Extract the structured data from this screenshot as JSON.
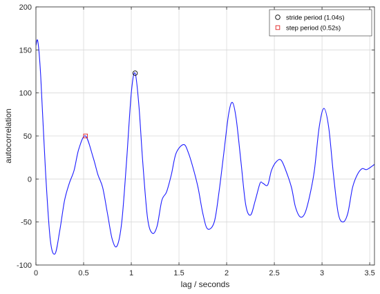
{
  "chart_data": {
    "type": "line",
    "xlabel": "lag / seconds",
    "ylabel": "autocorrelation",
    "xlim": [
      0,
      3.55
    ],
    "ylim": [
      -100,
      200
    ],
    "xticks": [
      0,
      0.5,
      1,
      1.5,
      2,
      2.5,
      3,
      3.5
    ],
    "xtick_labels": [
      "0",
      "0.5",
      "1",
      "1.5",
      "2",
      "2.5",
      "3",
      "3.5"
    ],
    "yticks": [
      -100,
      -50,
      0,
      50,
      100,
      150,
      200
    ],
    "ytick_labels": [
      "-100",
      "-50",
      "0",
      "50",
      "100",
      "150",
      "200"
    ],
    "grid": true,
    "legend_position": "top-right",
    "colors": {
      "line": "#1a1aff",
      "stride_marker": "#000000",
      "step_marker": "#e02020",
      "grid": "#d9d9d9",
      "axes": "#262626"
    },
    "series": [
      {
        "x": [
          0,
          0.02,
          0.05,
          0.1,
          0.15,
          0.2,
          0.25,
          0.3,
          0.35,
          0.4,
          0.45,
          0.52,
          0.6,
          0.65,
          0.7,
          0.75,
          0.8,
          0.85,
          0.9,
          0.95,
          1.0,
          1.04,
          1.08,
          1.12,
          1.17,
          1.22,
          1.27,
          1.32,
          1.37,
          1.42,
          1.47,
          1.55,
          1.6,
          1.65,
          1.7,
          1.75,
          1.8,
          1.87,
          1.92,
          1.97,
          2.02,
          2.06,
          2.1,
          2.15,
          2.2,
          2.25,
          2.3,
          2.35,
          2.38,
          2.43,
          2.47,
          2.52,
          2.57,
          2.62,
          2.68,
          2.72,
          2.77,
          2.82,
          2.87,
          2.92,
          2.97,
          3.02,
          3.07,
          3.12,
          3.17,
          3.22,
          3.27,
          3.32,
          3.37,
          3.42,
          3.47,
          3.55
        ],
        "values": [
          155,
          160,
          120,
          10,
          -70,
          -87,
          -60,
          -25,
          -5,
          10,
          35,
          50,
          25,
          5,
          -10,
          -40,
          -70,
          -78,
          -50,
          20,
          100,
          123,
          85,
          20,
          -45,
          -63,
          -55,
          -25,
          -15,
          5,
          30,
          40,
          30,
          12,
          -10,
          -40,
          -58,
          -50,
          -15,
          30,
          75,
          89,
          70,
          20,
          -30,
          -42,
          -25,
          -5,
          -5,
          -7,
          10,
          20,
          22,
          10,
          -10,
          -32,
          -44,
          -40,
          -20,
          10,
          60,
          82,
          60,
          5,
          -40,
          -50,
          -40,
          -10,
          5,
          12,
          11,
          17
        ]
      }
    ],
    "markers": [
      {
        "name": "stride period (1.04s)",
        "symbol": "circle",
        "x": 1.04,
        "y": 123
      },
      {
        "name": "step period (0.52s)",
        "symbol": "square",
        "x": 0.52,
        "y": 50
      }
    ]
  }
}
